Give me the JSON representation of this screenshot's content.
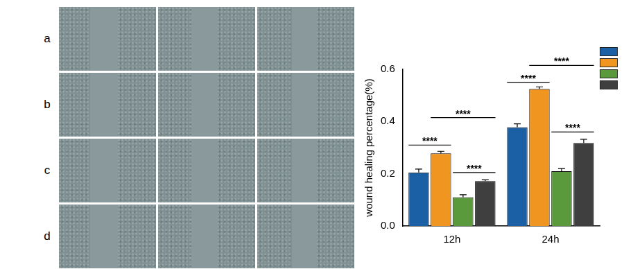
{
  "panel_labels": [
    "a",
    "b",
    "c",
    "d"
  ],
  "chart_data": {
    "type": "bar",
    "y_label": "wound healing percentage(%)",
    "categories": [
      "12h",
      "24h"
    ],
    "series": [
      {
        "color": "#1b5fa5",
        "values": [
          0.205,
          0.378
        ],
        "errors": [
          0.013,
          0.013
        ]
      },
      {
        "color": "#f0951f",
        "values": [
          0.278,
          0.525
        ],
        "errors": [
          0.008,
          0.008
        ]
      },
      {
        "color": "#5a9a3c",
        "values": [
          0.11,
          0.21
        ],
        "errors": [
          0.01,
          0.01
        ]
      },
      {
        "color": "#3f3f3f",
        "values": [
          0.172,
          0.318
        ],
        "errors": [
          0.005,
          0.014
        ]
      }
    ],
    "ylim": [
      0,
      0.6
    ],
    "yticks": [
      {
        "value": 0,
        "label": "0.0"
      },
      0.2,
      0.4,
      0.6
    ],
    "grid": false,
    "comparisons": [
      {
        "category": "12h",
        "from": 0,
        "to": 1,
        "y": 0.31,
        "label": "****"
      },
      {
        "category": "12h",
        "from": 2,
        "to": 3,
        "y": 0.205,
        "label": "****"
      },
      {
        "category": "12h",
        "from": 1,
        "to": 3,
        "y": 0.415,
        "label": "****"
      },
      {
        "category": "24h",
        "from": 0,
        "to": 1,
        "y": 0.55,
        "label": "****"
      },
      {
        "category": "24h",
        "from": 2,
        "to": 3,
        "y": 0.36,
        "label": "****"
      },
      {
        "category": "24h",
        "from": 1,
        "to": 3,
        "y": 0.615,
        "label": "****"
      }
    ]
  }
}
